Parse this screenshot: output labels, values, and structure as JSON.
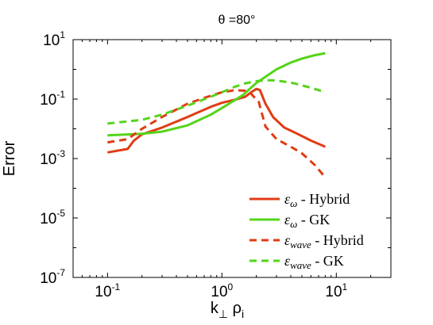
{
  "chart_data": {
    "type": "line",
    "title": "θ =80°",
    "xlabel": "k⊥ ρi",
    "ylabel": "Error",
    "xscale": "log",
    "yscale": "log",
    "xlim": [
      0.05,
      30
    ],
    "ylim": [
      1e-07,
      10
    ],
    "grid": false,
    "legend_position": "bottom-right",
    "x_ticks": [
      {
        "value": 0.1,
        "label_base": "10",
        "label_exp": "-1"
      },
      {
        "value": 1,
        "label_base": "10",
        "label_exp": "0"
      },
      {
        "value": 10,
        "label_base": "10",
        "label_exp": "1"
      }
    ],
    "y_ticks": [
      {
        "value": 1e-07,
        "label_base": "10",
        "label_exp": "-7"
      },
      {
        "value": 1e-05,
        "label_base": "10",
        "label_exp": "-5"
      },
      {
        "value": 0.001,
        "label_base": "10",
        "label_exp": "-3"
      },
      {
        "value": 0.1,
        "label_base": "10",
        "label_exp": "-1"
      },
      {
        "value": 10,
        "label_base": "10",
        "label_exp": "1"
      }
    ],
    "series": [
      {
        "name": "ε_ω - Hybrid",
        "label_symbol": "ε",
        "label_sub": "ω",
        "label_text": " - Hybrid",
        "color": "#e03c14",
        "dash": "solid",
        "points": [
          [
            0.1,
            0.0016
          ],
          [
            0.15,
            0.0021
          ],
          [
            0.17,
            0.004
          ],
          [
            0.2,
            0.0065
          ],
          [
            0.3,
            0.011
          ],
          [
            0.5,
            0.025
          ],
          [
            0.8,
            0.055
          ],
          [
            1.0,
            0.075
          ],
          [
            1.3,
            0.095
          ],
          [
            1.6,
            0.12
          ],
          [
            1.8,
            0.17
          ],
          [
            2.0,
            0.22
          ],
          [
            2.15,
            0.2
          ],
          [
            2.4,
            0.07
          ],
          [
            2.8,
            0.025
          ],
          [
            3.5,
            0.011
          ],
          [
            4.5,
            0.007
          ],
          [
            6,
            0.004
          ],
          [
            8,
            0.0025
          ]
        ]
      },
      {
        "name": "ε_ω - GK",
        "label_symbol": "ε",
        "label_sub": "ω",
        "label_text": " - GK",
        "color": "#55d41a",
        "dash": "solid",
        "points": [
          [
            0.1,
            0.006
          ],
          [
            0.2,
            0.0068
          ],
          [
            0.3,
            0.008
          ],
          [
            0.5,
            0.013
          ],
          [
            0.8,
            0.03
          ],
          [
            1.0,
            0.05
          ],
          [
            1.5,
            0.13
          ],
          [
            2,
            0.35
          ],
          [
            3,
            1.0
          ],
          [
            4,
            1.7
          ],
          [
            5,
            2.3
          ],
          [
            6.5,
            3.0
          ],
          [
            8,
            3.5
          ]
        ]
      },
      {
        "name": "ε_wave - Hybrid",
        "label_symbol": "ε",
        "label_sub": "wave",
        "label_text": " - Hybrid",
        "color": "#e03c14",
        "dash": "dashed",
        "points": [
          [
            0.1,
            0.0035
          ],
          [
            0.15,
            0.0045
          ],
          [
            0.2,
            0.01
          ],
          [
            0.3,
            0.025
          ],
          [
            0.5,
            0.07
          ],
          [
            0.8,
            0.13
          ],
          [
            1.0,
            0.17
          ],
          [
            1.3,
            0.2
          ],
          [
            1.6,
            0.19
          ],
          [
            1.8,
            0.15
          ],
          [
            2.1,
            0.08
          ],
          [
            2.4,
            0.012
          ],
          [
            3,
            0.0045
          ],
          [
            4,
            0.0025
          ],
          [
            5,
            0.0015
          ],
          [
            6.5,
            0.0006
          ],
          [
            8,
            0.00023
          ]
        ]
      },
      {
        "name": "ε_wave - GK",
        "label_symbol": "ε",
        "label_sub": "wave",
        "label_text": " - GK",
        "color": "#55d41a",
        "dash": "dashed",
        "points": [
          [
            0.1,
            0.015
          ],
          [
            0.2,
            0.02
          ],
          [
            0.3,
            0.03
          ],
          [
            0.5,
            0.06
          ],
          [
            0.8,
            0.12
          ],
          [
            1.0,
            0.17
          ],
          [
            1.3,
            0.26
          ],
          [
            1.6,
            0.34
          ],
          [
            2.0,
            0.4
          ],
          [
            2.5,
            0.43
          ],
          [
            3,
            0.42
          ],
          [
            4,
            0.36
          ],
          [
            6,
            0.24
          ],
          [
            8,
            0.17
          ]
        ]
      }
    ]
  }
}
